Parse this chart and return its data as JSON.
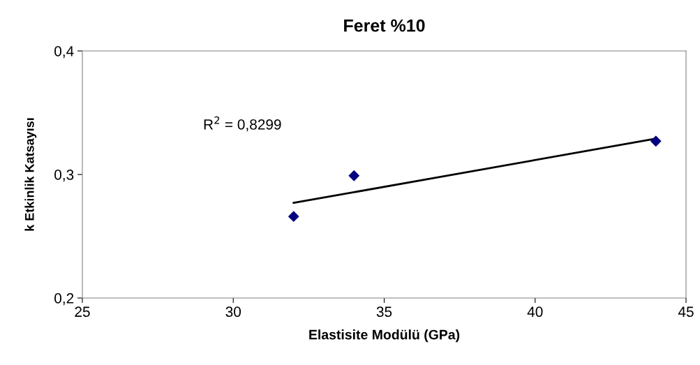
{
  "chart_data": {
    "type": "scatter",
    "title": "Feret %10",
    "xlabel": "Elastisite Modülü (GPa)",
    "ylabel": "k Etkinlik Katsayısı",
    "series": [
      {
        "x": [
          32,
          34,
          44
        ],
        "values": [
          0.266,
          0.299,
          0.327
        ],
        "color": "#000080",
        "marker": "diamond"
      },
      {
        "type": "line",
        "x": [
          32,
          44
        ],
        "values": [
          0.277,
          0.329
        ],
        "color": "#000000",
        "marker": "none",
        "line_style": "solid"
      }
    ],
    "xlim": [
      25,
      45
    ],
    "xticks": [
      25,
      30,
      35,
      40,
      45
    ],
    "ylim": [
      0.2,
      0.4
    ],
    "yticks": [
      {
        "value": 0.2,
        "label": "0,2"
      },
      {
        "value": 0.3,
        "label": "0,3"
      },
      {
        "value": 0.4,
        "label": "0,4"
      }
    ],
    "annotations": [
      "R$^{2}$ = 0,8299"
    ],
    "grid": false,
    "legend": false
  }
}
